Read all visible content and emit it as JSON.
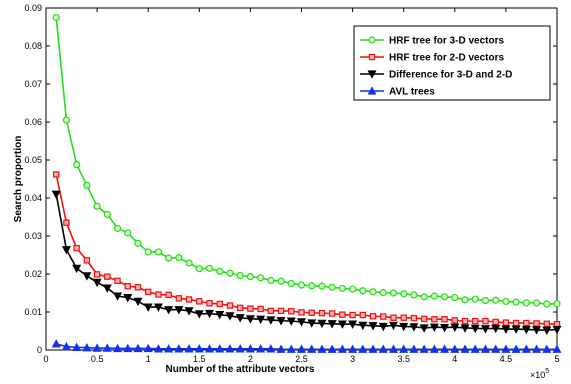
{
  "chart_data": {
    "type": "line",
    "xlabel": "Number of the attribute vectors",
    "ylabel": "Search proportion",
    "x_exponent": "×10",
    "x_exponent_power": "5",
    "xlim": [
      0,
      5
    ],
    "ylim": [
      0,
      0.09
    ],
    "xticks": [
      "0",
      "0.5",
      "1",
      "1.5",
      "2",
      "2.5",
      "3",
      "3.5",
      "4",
      "4.5",
      "5"
    ],
    "yticks": [
      "0",
      "0.01",
      "0.02",
      "0.03",
      "0.04",
      "0.05",
      "0.06",
      "0.07",
      "0.08",
      "0.09"
    ],
    "x": [
      0.1,
      0.2,
      0.3,
      0.4,
      0.5,
      0.6,
      0.7,
      0.8,
      0.9,
      1.0,
      1.1,
      1.2,
      1.3,
      1.4,
      1.5,
      1.6,
      1.7,
      1.8,
      1.9,
      2.0,
      2.1,
      2.2,
      2.3,
      2.4,
      2.5,
      2.6,
      2.7,
      2.8,
      2.9,
      3.0,
      3.1,
      3.2,
      3.3,
      3.4,
      3.5,
      3.6,
      3.7,
      3.8,
      3.9,
      4.0,
      4.1,
      4.2,
      4.3,
      4.4,
      4.5,
      4.6,
      4.7,
      4.8,
      4.9,
      5.0
    ],
    "series": [
      {
        "name": "HRF tree for 3-D vectors",
        "color": "#22dd22",
        "marker": "circle",
        "values": [
          0.0875,
          0.0605,
          0.0488,
          0.0433,
          0.0378,
          0.0357,
          0.032,
          0.0308,
          0.0281,
          0.0258,
          0.0258,
          0.0242,
          0.0243,
          0.0229,
          0.0214,
          0.0215,
          0.0207,
          0.0202,
          0.0196,
          0.0193,
          0.019,
          0.0183,
          0.0181,
          0.0175,
          0.0171,
          0.0169,
          0.0168,
          0.0165,
          0.0162,
          0.016,
          0.0156,
          0.0153,
          0.0151,
          0.015,
          0.0148,
          0.0145,
          0.014,
          0.0142,
          0.014,
          0.0138,
          0.0132,
          0.0134,
          0.013,
          0.0131,
          0.0128,
          0.0126,
          0.0124,
          0.0124,
          0.0121,
          0.0122
        ]
      },
      {
        "name": "HRF tree for 2-D vectors",
        "color": "#ee1111",
        "marker": "square",
        "values": [
          0.0462,
          0.0335,
          0.0268,
          0.0236,
          0.0199,
          0.0193,
          0.0182,
          0.0168,
          0.0165,
          0.0153,
          0.0146,
          0.0145,
          0.0136,
          0.0133,
          0.0128,
          0.0123,
          0.0121,
          0.0117,
          0.0111,
          0.0109,
          0.0108,
          0.0103,
          0.0103,
          0.0102,
          0.0099,
          0.0098,
          0.0097,
          0.0096,
          0.0093,
          0.0092,
          0.0092,
          0.0089,
          0.0088,
          0.0085,
          0.0085,
          0.0084,
          0.0082,
          0.0081,
          0.0081,
          0.0078,
          0.0076,
          0.0076,
          0.0076,
          0.0074,
          0.0072,
          0.0071,
          0.0071,
          0.007,
          0.0069,
          0.0068
        ]
      },
      {
        "name": "Difference for 3-D and 2-D",
        "color": "#000000",
        "marker": "triangle-down",
        "values": [
          0.041,
          0.0264,
          0.0215,
          0.0195,
          0.0178,
          0.0163,
          0.0142,
          0.0138,
          0.0128,
          0.0113,
          0.0113,
          0.0106,
          0.0106,
          0.0103,
          0.0095,
          0.0096,
          0.0093,
          0.009,
          0.0085,
          0.0082,
          0.0081,
          0.0079,
          0.0077,
          0.0076,
          0.0074,
          0.0071,
          0.007,
          0.0069,
          0.0068,
          0.0068,
          0.0065,
          0.0064,
          0.0062,
          0.0065,
          0.0062,
          0.0061,
          0.0058,
          0.006,
          0.0059,
          0.006,
          0.0058,
          0.0057,
          0.0056,
          0.0057,
          0.0055,
          0.0055,
          0.0054,
          0.0053,
          0.0052,
          0.0054
        ]
      },
      {
        "name": "AVL trees",
        "color": "#1133ee",
        "marker": "triangle-up",
        "values": [
          0.0016,
          0.0009,
          0.0007,
          0.0006,
          0.0005,
          0.0005,
          0.0004,
          0.0004,
          0.0004,
          0.0004,
          0.0003,
          0.0003,
          0.0003,
          0.0003,
          0.0003,
          0.0003,
          0.0003,
          0.0003,
          0.0003,
          0.0003,
          0.0003,
          0.0003,
          0.0002,
          0.0002,
          0.0002,
          0.0002,
          0.0002,
          0.0002,
          0.0002,
          0.0002,
          0.0002,
          0.0002,
          0.0002,
          0.0002,
          0.0002,
          0.0002,
          0.0002,
          0.0002,
          0.0002,
          0.0002,
          0.0002,
          0.0002,
          0.0002,
          0.0002,
          0.0002,
          0.0002,
          0.0002,
          0.0002,
          0.0002,
          0.0002
        ]
      }
    ],
    "legend_position": "top-right",
    "grid": false
  }
}
